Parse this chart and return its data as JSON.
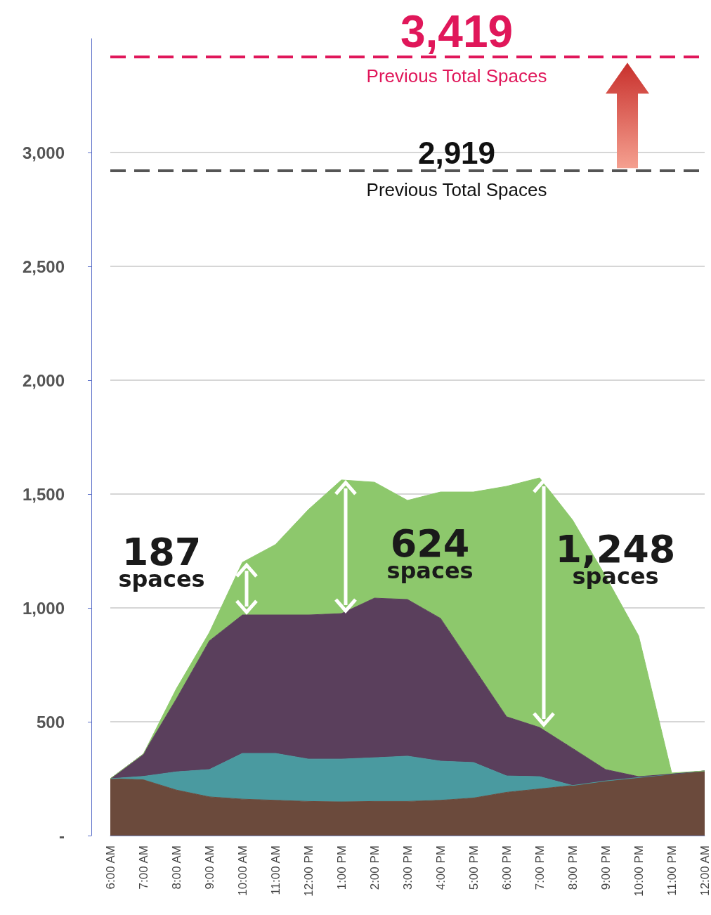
{
  "chart_data": {
    "type": "area",
    "stacked": true,
    "categories": [
      "6:00 AM",
      "7:00 AM",
      "8:00 AM",
      "9:00 AM",
      "10:00 AM",
      "11:00 AM",
      "12:00 PM",
      "1:00 PM",
      "2:00 PM",
      "3:00 PM",
      "4:00 PM",
      "5:00 PM",
      "6:00 PM",
      "7:00 PM",
      "8:00 PM",
      "9:00 PM",
      "10:00 PM",
      "11:00 PM",
      "12:00 AM"
    ],
    "series": [
      {
        "color": "#6b4a3c",
        "values": [
          250,
          245,
          200,
          170,
          160,
          155,
          150,
          148,
          150,
          150,
          155,
          165,
          190,
          205,
          220,
          240,
          255,
          270,
          284
        ]
      },
      {
        "color": "#4a9aa0",
        "values": [
          0,
          15,
          80,
          120,
          201,
          206,
          186,
          188,
          192,
          199,
          172,
          156,
          72,
          54,
          0,
          0,
          0,
          0,
          0
        ]
      },
      {
        "color": "#5a3f5c",
        "values": [
          0,
          98,
          320,
          565,
          608,
          608,
          633,
          639,
          701,
          688,
          627,
          417,
          260,
          216,
          163,
          50,
          4,
          0,
          0
        ]
      },
      {
        "color": "#8dc86c",
        "values": [
          0,
          0,
          45,
          37,
          231,
          309,
          463,
          587,
          509,
          435,
          555,
          771,
          1012,
          1096,
          1003,
          849,
          618,
          5,
          0
        ]
      }
    ],
    "ylim": [
      0,
      3500
    ],
    "yticks": [
      {
        "value": 0,
        "label": "-"
      },
      500,
      {
        "value": 1000,
        "label": "1,000"
      },
      {
        "value": 1500,
        "label": "1,500"
      },
      {
        "value": 2000,
        "label": "2,000"
      },
      {
        "value": 2500,
        "label": "2,500"
      },
      {
        "value": 3000,
        "label": "3,000"
      }
    ],
    "grid": "y",
    "ref_lines": [
      {
        "axis": "y",
        "value": 3419,
        "label": "3,419\nPrevious Total Spaces",
        "color": "#e0175a",
        "line_style": "dashed"
      },
      {
        "axis": "y",
        "value": 2919,
        "label": "2,919\nPrevious Total Spaces",
        "color": "#555555",
        "line_style": "dashed"
      }
    ],
    "annotations": [
      "187\nspaces",
      "624\nspaces",
      "1,248\nspaces"
    ]
  }
}
